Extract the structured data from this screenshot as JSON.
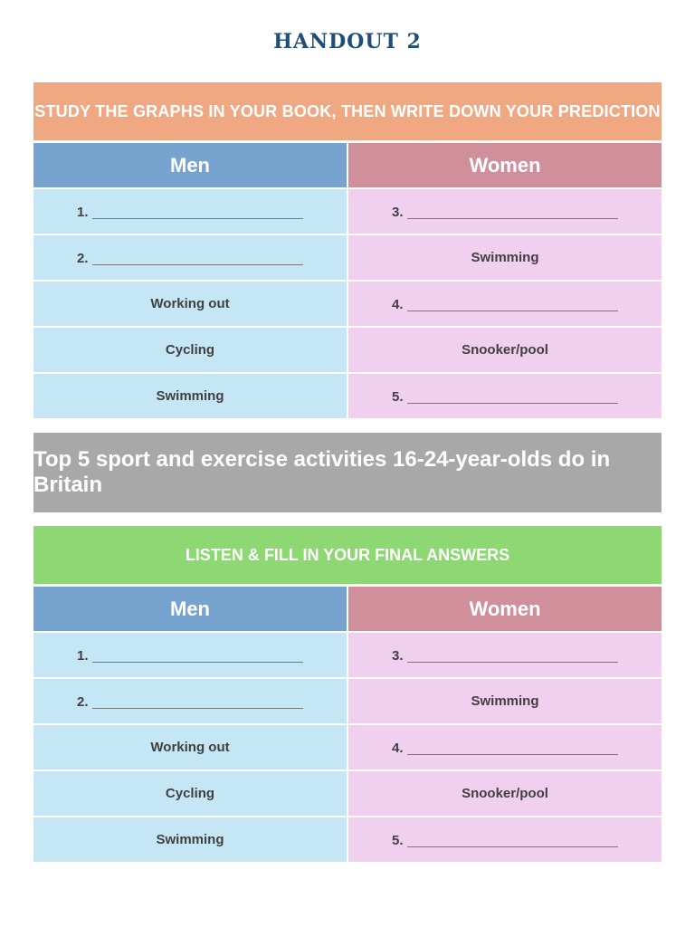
{
  "title": "HANDOUT 2",
  "prediction_banner": "STUDY THE GRAPHS IN YOUR BOOK, THEN WRITE DOWN YOUR PREDICTION",
  "middle_banner": "Top 5 sport and exercise activities 16-24-year-olds do in Britain",
  "final_banner": "LISTEN & FILL IN YOUR FINAL ANSWERS",
  "prediction_table": {
    "men_header": "Men",
    "women_header": "Women",
    "rows": [
      {
        "men": "1.",
        "women": "3."
      },
      {
        "men": "2.",
        "women": "Swimming"
      },
      {
        "men": "Working out",
        "women": "4."
      },
      {
        "men": "Cycling",
        "women": "Snooker/pool"
      },
      {
        "men": "Swimming",
        "women": "5."
      }
    ]
  },
  "final_table": {
    "men_header": "Men",
    "women_header": "Women",
    "rows": [
      {
        "men": "1.",
        "women": "3."
      },
      {
        "men": "2.",
        "women": "Swimming"
      },
      {
        "men": "Working out",
        "women": "4."
      },
      {
        "men": "Cycling",
        "women": "Snooker/pool"
      },
      {
        "men": "Swimming",
        "women": "5."
      }
    ]
  },
  "colors": {
    "title": "#1f4e79",
    "orange_banner": "#f0a883",
    "grey_banner": "#a8a8a8",
    "green_banner": "#8dd873",
    "men_header": "#77a3cf",
    "women_header": "#cf909c",
    "men_cell": "#c5e6f5",
    "women_cell": "#f1d0ef"
  }
}
